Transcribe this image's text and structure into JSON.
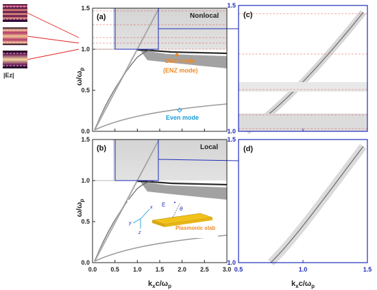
{
  "figure": {
    "panels": {
      "a": {
        "tag": "(a)",
        "regime": "Nonlocal"
      },
      "b": {
        "tag": "(b)",
        "regime": "Local"
      },
      "c": {
        "tag": "(c)"
      },
      "d": {
        "tag": "(d)"
      }
    },
    "axes": {
      "ylabel_main": "ω/ω",
      "ylabel_sub": "p",
      "xlabel_main": "k",
      "xlabel_sub_x": "x",
      "xlabel_mid": "c/ω",
      "xlabel_sub_p": "p"
    },
    "ticks": {
      "left_x": [
        "0.0",
        "0.5",
        "1.0",
        "1.5",
        "2.0",
        "2.5",
        "3.0"
      ],
      "left_y": [
        "0.0",
        "0.5",
        "1.0",
        "1.5"
      ],
      "right_x": [
        "0.5",
        "1.0",
        "1.5"
      ],
      "right_y": [
        "1.0",
        "1.5"
      ]
    },
    "annotations": {
      "odd_mode": "Odd mode",
      "enz_mode": "(ENZ mode)",
      "even_mode": "Even mode",
      "ez_label": "|Ez|",
      "slab_label": "Plasmonic slab",
      "axis_x": "x",
      "axis_z": "z",
      "axis_y": "y",
      "field_E": "E",
      "angle": "θ"
    },
    "colors": {
      "zoom_box": "#1d2bb8",
      "dashed_lines": "#e05050",
      "odd_mode": "#f08a24",
      "even_mode": "#1a9ad6",
      "connector": "#e02020",
      "slab": "#f2c21b"
    }
  },
  "chart_data": [
    {
      "type": "heatmap",
      "panel": "a",
      "regime": "Nonlocal",
      "xlabel": "kxc/ωp",
      "ylabel": "ω/ωp",
      "xlim": [
        0,
        3
      ],
      "ylim": [
        0,
        1.5
      ],
      "features": [
        {
          "name": "Odd mode",
          "x": 2.0,
          "y": 0.99
        },
        {
          "name": "Even mode",
          "x": 2.05,
          "y": 0.22
        }
      ],
      "zoom_region": {
        "x": [
          0.5,
          1.5
        ],
        "y": [
          1.0,
          1.5
        ]
      }
    },
    {
      "type": "heatmap",
      "panel": "b",
      "regime": "Local",
      "xlabel": "kxc/ωp",
      "ylabel": "ω/ωp",
      "xlim": [
        0,
        3
      ],
      "ylim": [
        0,
        1.5
      ],
      "zoom_region": {
        "x": [
          0.5,
          1.5
        ],
        "y": [
          1.0,
          1.5
        ]
      }
    },
    {
      "type": "heatmap",
      "panel": "c",
      "xlim": [
        0.5,
        1.5
      ],
      "ylim": [
        1.0,
        1.5
      ]
    },
    {
      "type": "heatmap",
      "panel": "d",
      "xlabel": "kxc/ωp",
      "xlim": [
        0.5,
        1.5
      ],
      "ylim": [
        1.0,
        1.5
      ]
    }
  ]
}
